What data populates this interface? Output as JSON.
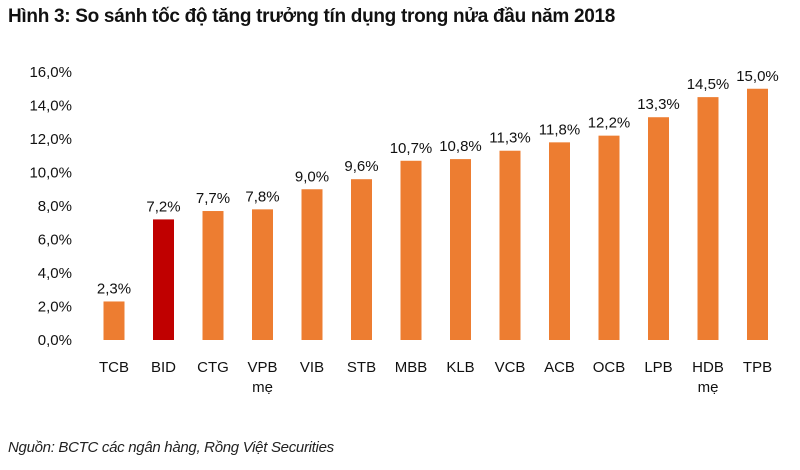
{
  "chart_data": {
    "type": "bar",
    "title": "Hình 3: So sánh tốc độ tăng trưởng tín dụng trong nửa đầu năm 2018",
    "source": "Nguồn: BCTC các ngân hàng, Rồng Việt Securities",
    "categories": [
      "TCB",
      "BID",
      "CTG",
      "VPB mẹ",
      "VIB",
      "STB",
      "MBB",
      "KLB",
      "VCB",
      "ACB",
      "OCB",
      "LPB",
      "HDB mẹ",
      "TPB"
    ],
    "values": [
      2.3,
      7.2,
      7.7,
      7.8,
      9.0,
      9.6,
      10.7,
      10.8,
      11.3,
      11.8,
      12.2,
      13.3,
      14.5,
      15.0
    ],
    "data_labels": [
      "2,3%",
      "7,2%",
      "7,7%",
      "7,8%",
      "9,0%",
      "9,6%",
      "10,7%",
      "10,8%",
      "11,3%",
      "11,8%",
      "12,2%",
      "13,3%",
      "14,5%",
      "15,0%"
    ],
    "yticks": [
      "0,0%",
      "2,0%",
      "4,0%",
      "6,0%",
      "8,0%",
      "10,0%",
      "12,0%",
      "14,0%",
      "16,0%"
    ],
    "ylim": [
      0,
      16
    ],
    "xlabel": "",
    "ylabel": "",
    "grid": false,
    "colors": {
      "default": "#ED7D31",
      "highlight": "#C00000"
    },
    "highlight_category": "BID"
  }
}
